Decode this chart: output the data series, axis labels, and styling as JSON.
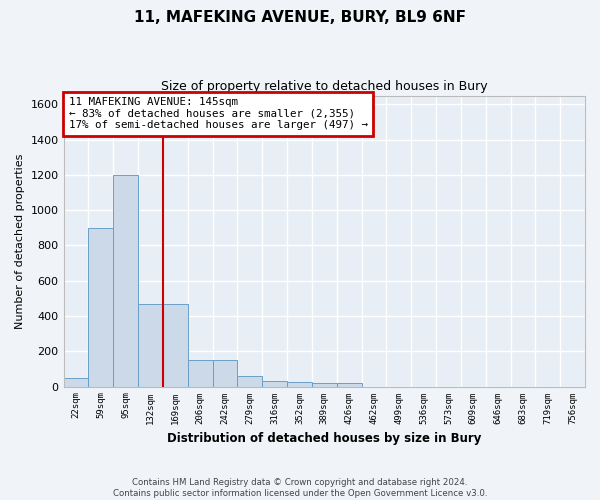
{
  "title": "11, MAFEKING AVENUE, BURY, BL9 6NF",
  "subtitle": "Size of property relative to detached houses in Bury",
  "xlabel": "Distribution of detached houses by size in Bury",
  "ylabel": "Number of detached properties",
  "bar_color": "#ccd9e8",
  "bar_edge_color": "#6a9fc8",
  "background_color": "#e8eef5",
  "grid_color": "#ffffff",
  "bin_labels": [
    "22sqm",
    "59sqm",
    "95sqm",
    "132sqm",
    "169sqm",
    "206sqm",
    "242sqm",
    "279sqm",
    "316sqm",
    "352sqm",
    "389sqm",
    "426sqm",
    "462sqm",
    "499sqm",
    "536sqm",
    "573sqm",
    "609sqm",
    "646sqm",
    "683sqm",
    "719sqm",
    "756sqm"
  ],
  "bar_heights": [
    50,
    900,
    1200,
    470,
    470,
    150,
    150,
    60,
    30,
    25,
    20,
    20,
    0,
    0,
    0,
    0,
    0,
    0,
    0,
    0,
    0
  ],
  "ylim": [
    0,
    1650
  ],
  "yticks": [
    0,
    200,
    400,
    600,
    800,
    1000,
    1200,
    1400,
    1600
  ],
  "red_line_bin": 3.5,
  "annotation_text1": "11 MAFEKING AVENUE: 145sqm",
  "annotation_text2": "← 83% of detached houses are smaller (2,355)",
  "annotation_text3": "17% of semi-detached houses are larger (497) →",
  "footer_line1": "Contains HM Land Registry data © Crown copyright and database right 2024.",
  "footer_line2": "Contains public sector information licensed under the Open Government Licence v3.0.",
  "fig_bg": "#f0f4f9"
}
